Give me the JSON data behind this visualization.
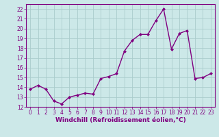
{
  "x": [
    0,
    1,
    2,
    3,
    4,
    5,
    6,
    7,
    8,
    9,
    10,
    11,
    12,
    13,
    14,
    15,
    16,
    17,
    18,
    19,
    20,
    21,
    22,
    23
  ],
  "y": [
    13.8,
    14.2,
    13.8,
    12.6,
    12.3,
    13.0,
    13.2,
    13.4,
    13.3,
    14.9,
    15.1,
    15.4,
    17.7,
    18.8,
    19.4,
    19.4,
    20.8,
    22.0,
    17.9,
    19.5,
    19.8,
    14.9,
    15.0,
    15.4
  ],
  "line_color": "#800080",
  "marker": "D",
  "marker_size": 2,
  "bg_color": "#cce8e8",
  "grid_color": "#aacccc",
  "xlabel": "Windchill (Refroidissement éolien,°C)",
  "ylabel": "",
  "xlim": [
    -0.5,
    23.5
  ],
  "ylim": [
    12,
    22.5
  ],
  "yticks": [
    12,
    13,
    14,
    15,
    16,
    17,
    18,
    19,
    20,
    21,
    22
  ],
  "xticks": [
    0,
    1,
    2,
    3,
    4,
    5,
    6,
    7,
    8,
    9,
    10,
    11,
    12,
    13,
    14,
    15,
    16,
    17,
    18,
    19,
    20,
    21,
    22,
    23
  ],
  "tick_color": "#800080",
  "tick_label_color": "#800080",
  "xlabel_color": "#800080",
  "tick_fontsize": 5.5,
  "xlabel_fontsize": 6.5,
  "linewidth": 1.0
}
